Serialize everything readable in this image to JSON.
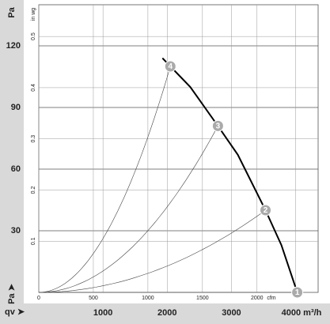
{
  "chart_data": {
    "type": "line",
    "y_label": "Pa",
    "y_label_bottom": "Pa ➤",
    "x_label": "qv ➤",
    "x": [
      1926,
      2049,
      2358,
      2790,
      3099,
      3531,
      3778,
      4025
    ],
    "values": [
      114,
      110,
      100,
      81,
      67,
      40,
      23,
      0
    ],
    "color": "#000000",
    "xlim": [
      0,
      4350
    ],
    "ylim": [
      0,
      140
    ],
    "xticks": [
      1000,
      2000,
      3000,
      {
        "value": 4000,
        "label": "4000 m³/h"
      }
    ],
    "yticks": [
      30,
      60,
      90,
      120
    ],
    "y2_label": "in wg",
    "y2lim": [
      0,
      0.562
    ],
    "y2ticks": [
      0.1,
      0.2,
      0.3,
      0.4,
      0.5
    ],
    "x2_label": "cfm",
    "x2lim": [
      0,
      2560
    ],
    "x2ticks": [
      0,
      500,
      1000,
      1500,
      2000
    ],
    "grid": true,
    "points": [
      {
        "label": "1",
        "x": 4025,
        "y": 0
      },
      {
        "label": "2",
        "x": 3531,
        "y": 40
      },
      {
        "label": "3",
        "x": 2790,
        "y": 81
      },
      {
        "label": "4",
        "x": 2049,
        "y": 110
      }
    ]
  }
}
